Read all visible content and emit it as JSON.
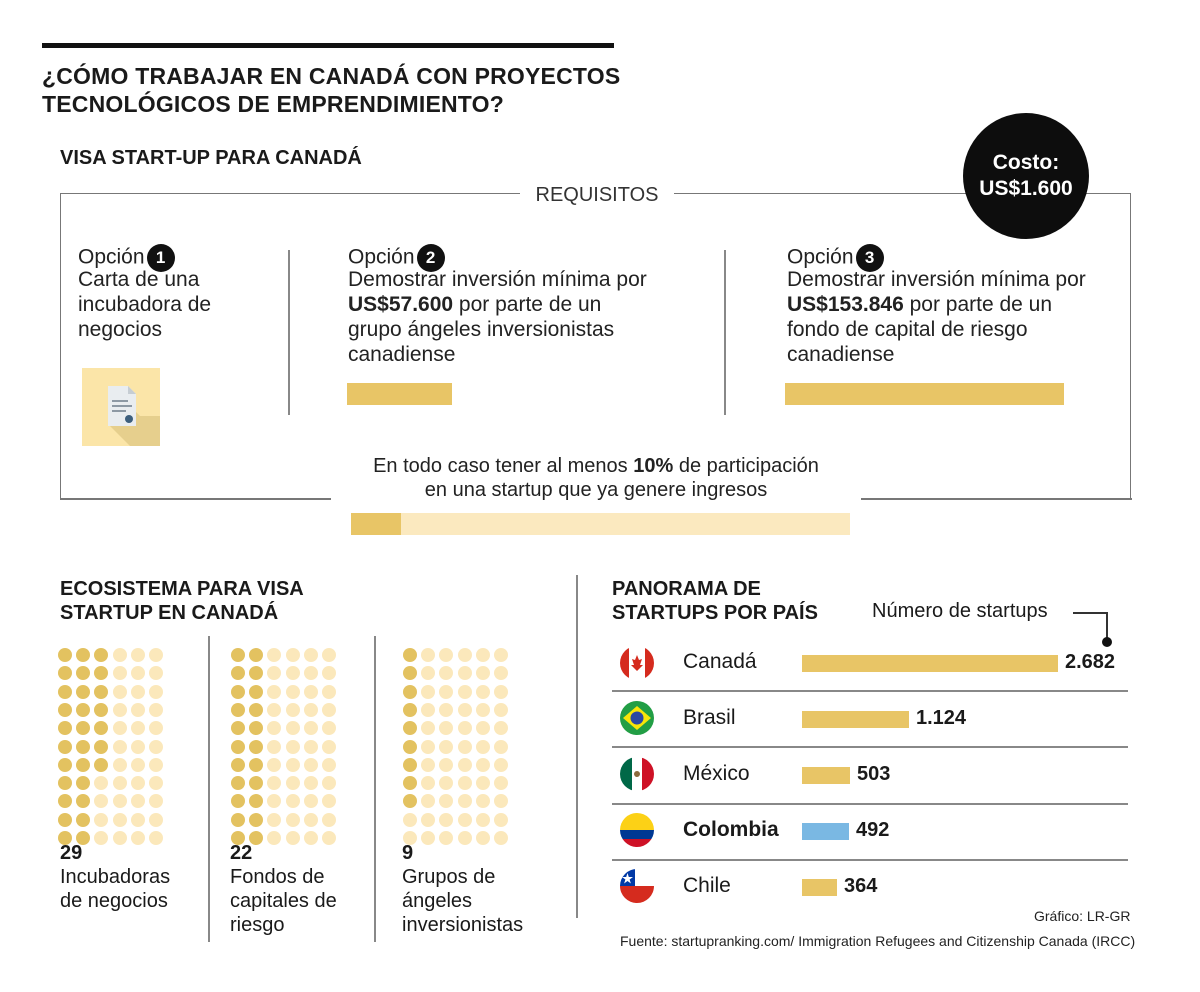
{
  "title_line1": "¿CÓMO TRABAJAR EN CANADÁ CON PROYECTOS",
  "title_line2": "TECNOLÓGICOS DE EMPRENDIMIENTO?",
  "subtitle": "VISA START-UP PARA CANADÁ",
  "costo_label": "Costo:",
  "costo_value": "US$1.600",
  "requisitos_label": "REQUISITOS",
  "options": [
    {
      "label": "Opción",
      "num": "1",
      "lines": [
        "Carta de una",
        "incubadora de",
        "negocios"
      ]
    },
    {
      "label": "Opción",
      "num": "2",
      "line1": "Demostrar inversión mínima por",
      "amount": "US$57.600",
      "rest": " por parte de un",
      "line3": "grupo ángeles inversionistas",
      "line4": "canadiense"
    },
    {
      "label": "Opción",
      "num": "3",
      "line1": "Demostrar inversión mínima por",
      "amount": "US$153.846",
      "rest": " por parte de un",
      "line3": "fondo de capital de riesgo",
      "line4": "canadiense"
    }
  ],
  "note_pre": "En todo caso tener al menos ",
  "note_bold": "10%",
  "note_post": " de participación",
  "note_line2": "en una startup que ya genere ingresos",
  "participation_min_pct": 10,
  "ecosystem_title1": "ECOSISTEMA PARA VISA",
  "ecosystem_title2": "STARTUP EN CANADÁ",
  "ecosystem": [
    {
      "value": "29",
      "line1": "Incubadoras",
      "line2": "de negocios",
      "line3": ""
    },
    {
      "value": "22",
      "line1": "Fondos de",
      "line2": "capitales de",
      "line3": "riesgo"
    },
    {
      "value": "9",
      "line1": "Grupos de",
      "line2": "ángeles",
      "line3": "inversionistas"
    }
  ],
  "panorama_title1": "PANORAMA DE",
  "panorama_title2": "STARTUPS POR PAÍS",
  "legend_label": "Número de startups",
  "chart_data": {
    "type": "bar",
    "title": "PANORAMA DE STARTUPS POR PAÍS",
    "categories": [
      "Canadá",
      "Brasil",
      "México",
      "Colombia",
      "Chile"
    ],
    "values": [
      2682,
      1124,
      503,
      492,
      364
    ],
    "value_labels": [
      "2.682",
      "1.124",
      "503",
      "492",
      "364"
    ],
    "highlight": "Colombia",
    "colors": {
      "default": "#e8c566",
      "highlight": "#7ab8e3"
    }
  },
  "credit": "Gráfico: LR-GR",
  "source": "Fuente: startupranking.com/ Immigration Refugees and Citizenship Canada (IRCC)"
}
